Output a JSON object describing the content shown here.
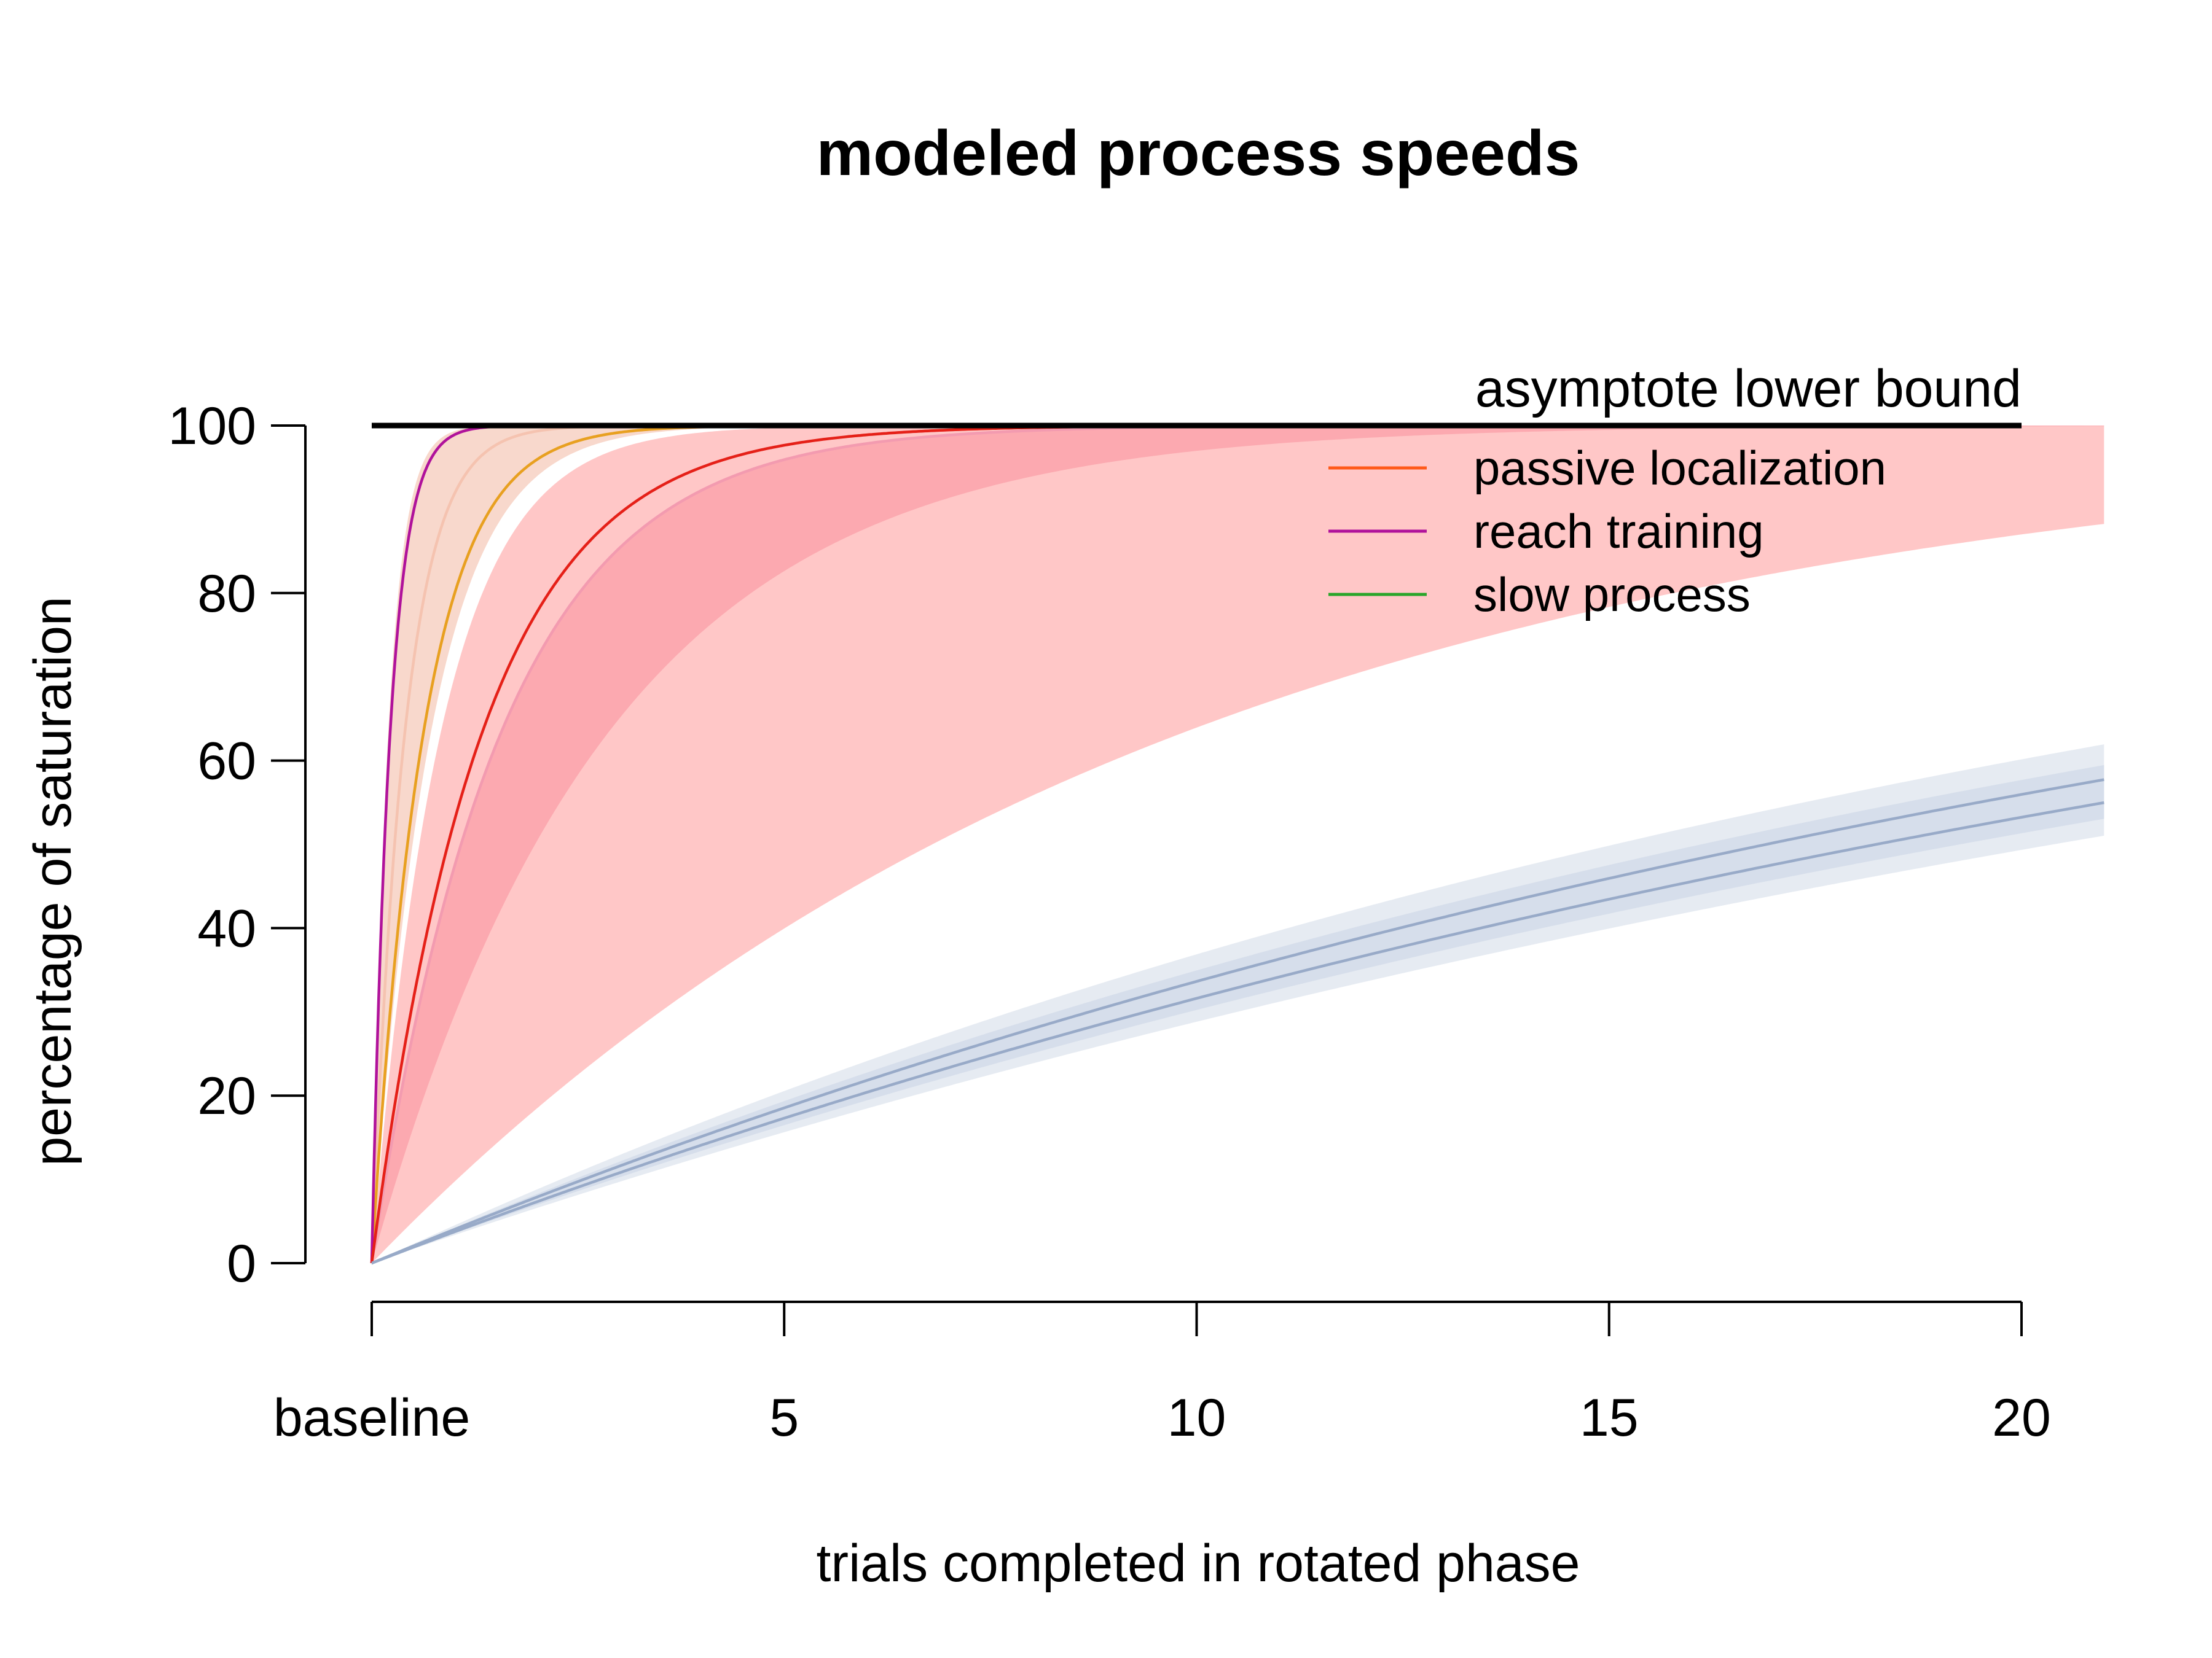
{
  "chart_data": {
    "type": "line",
    "title": "modeled process speeds",
    "xlabel": "trials completed in rotated phase",
    "ylabel": "percentage of saturation",
    "xlim": [
      0,
      21
    ],
    "ylim": [
      0,
      100
    ],
    "x_ticks": [
      {
        "value": 0,
        "label": "baseline"
      },
      {
        "value": 5,
        "label": "5"
      },
      {
        "value": 10,
        "label": "10"
      },
      {
        "value": 15,
        "label": "15"
      },
      {
        "value": 20,
        "label": "20"
      }
    ],
    "y_ticks": [
      0,
      20,
      40,
      60,
      80,
      100
    ],
    "reference_line": {
      "y": 100,
      "x_range": [
        0,
        20
      ],
      "label": "asymptote lower bound",
      "color": "#000000"
    },
    "legend": {
      "placement": "top-right",
      "entries": [
        {
          "label": "passive localization",
          "color": "#ff5a1a"
        },
        {
          "label": "reach training",
          "color": "#b0129b"
        },
        {
          "label": "slow process",
          "color": "#2aa52a"
        }
      ]
    },
    "series": [
      {
        "color": "#f5c3b0",
        "band_opacity": 0.65,
        "rate": 2.5,
        "band_rate": [
          1.4,
          5.0
        ]
      },
      {
        "color": "#f39bb0",
        "band_opacity": 0.6,
        "rate": 0.64,
        "band_rate": [
          0.35,
          0.64
        ]
      },
      {
        "color": "#e8a020",
        "rate": 1.6
      },
      {
        "color": "#b0129b",
        "rate": 4.5
      },
      {
        "color": "#e52018",
        "rate": 0.75
      },
      {
        "color": "#ff9090",
        "band_opacity": 0.5,
        "band_rate": [
          0.102,
          1.2
        ]
      },
      {
        "color": "#c8d2e2",
        "band_opacity": 0.45,
        "band_rate": [
          0.034,
          0.046
        ]
      },
      {
        "color": "#d2dbe8",
        "band_opacity": 0.8,
        "band_rate": [
          0.036,
          0.043
        ]
      },
      {
        "color": "#98aac8",
        "rate": 0.041
      },
      {
        "color": "#98aac8",
        "rate": 0.038
      }
    ]
  }
}
